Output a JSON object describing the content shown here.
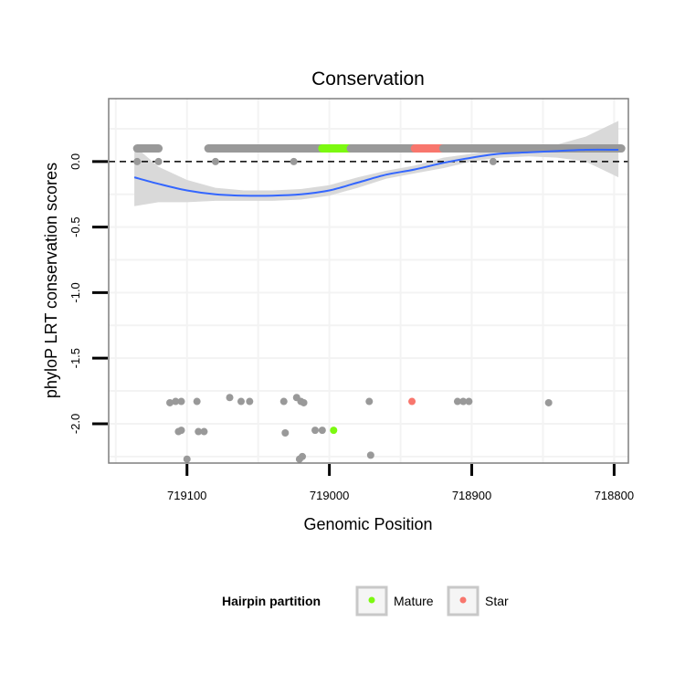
{
  "chart_data": {
    "type": "scatter",
    "title": "Conservation",
    "xlabel": "Genomic Position",
    "ylabel": "phyloP LRT conservation scores",
    "xlim": [
      719155,
      718790
    ],
    "ylim": [
      -2.3,
      0.48
    ],
    "x_reversed": true,
    "grid": true,
    "x_ticks": [
      {
        "value": 719100,
        "label": "719100"
      },
      {
        "value": 719000,
        "label": "719000"
      },
      {
        "value": 718900,
        "label": "718900"
      },
      {
        "value": 718800,
        "label": "718800"
      }
    ],
    "y_ticks": [
      {
        "value": 0.0,
        "label": "0.0"
      },
      {
        "value": -0.5,
        "label": "-0.5"
      },
      {
        "value": -1.0,
        "label": "-1.0"
      },
      {
        "value": -1.5,
        "label": "-1.5"
      },
      {
        "value": -2.0,
        "label": "-2.0"
      }
    ],
    "reference_line": {
      "y": 0,
      "style": "dashed"
    },
    "top_band": {
      "y": 0.1,
      "ranges": [
        {
          "partition": "Other",
          "start": 719135,
          "end": 719120
        },
        {
          "partition": "Other",
          "start": 719085,
          "end": 719005
        },
        {
          "partition": "Mature",
          "start": 719005,
          "end": 718985
        },
        {
          "partition": "Other",
          "start": 718985,
          "end": 718940
        },
        {
          "partition": "Star",
          "start": 718940,
          "end": 718920
        },
        {
          "partition": "Other",
          "start": 718920,
          "end": 718795
        }
      ]
    },
    "points": [
      {
        "x": 719135,
        "y": 0.0,
        "partition": "Other"
      },
      {
        "x": 719120,
        "y": 0.0,
        "partition": "Other"
      },
      {
        "x": 719080,
        "y": 0.0,
        "partition": "Other"
      },
      {
        "x": 719025,
        "y": 0.0,
        "partition": "Other"
      },
      {
        "x": 718885,
        "y": 0.0,
        "partition": "Other"
      },
      {
        "x": 719112,
        "y": -1.84,
        "partition": "Other"
      },
      {
        "x": 719108,
        "y": -1.83,
        "partition": "Other"
      },
      {
        "x": 719104,
        "y": -1.83,
        "partition": "Other"
      },
      {
        "x": 719106,
        "y": -2.06,
        "partition": "Other"
      },
      {
        "x": 719104,
        "y": -2.05,
        "partition": "Other"
      },
      {
        "x": 719100,
        "y": -2.27,
        "partition": "Other"
      },
      {
        "x": 719093,
        "y": -1.83,
        "partition": "Other"
      },
      {
        "x": 719092,
        "y": -2.06,
        "partition": "Other"
      },
      {
        "x": 719088,
        "y": -2.06,
        "partition": "Other"
      },
      {
        "x": 719070,
        "y": -1.8,
        "partition": "Other"
      },
      {
        "x": 719062,
        "y": -1.83,
        "partition": "Other"
      },
      {
        "x": 719056,
        "y": -1.83,
        "partition": "Other"
      },
      {
        "x": 719032,
        "y": -1.83,
        "partition": "Other"
      },
      {
        "x": 719031,
        "y": -2.07,
        "partition": "Other"
      },
      {
        "x": 719023,
        "y": -1.8,
        "partition": "Other"
      },
      {
        "x": 719020,
        "y": -1.83,
        "partition": "Other"
      },
      {
        "x": 719018,
        "y": -1.84,
        "partition": "Other"
      },
      {
        "x": 719021,
        "y": -2.27,
        "partition": "Other"
      },
      {
        "x": 719019,
        "y": -2.25,
        "partition": "Other"
      },
      {
        "x": 719010,
        "y": -2.05,
        "partition": "Other"
      },
      {
        "x": 719005,
        "y": -2.05,
        "partition": "Other"
      },
      {
        "x": 718997,
        "y": -2.05,
        "partition": "Mature"
      },
      {
        "x": 718972,
        "y": -1.83,
        "partition": "Other"
      },
      {
        "x": 718971,
        "y": -2.24,
        "partition": "Other"
      },
      {
        "x": 718942,
        "y": -1.83,
        "partition": "Star"
      },
      {
        "x": 718910,
        "y": -1.83,
        "partition": "Other"
      },
      {
        "x": 718906,
        "y": -1.83,
        "partition": "Other"
      },
      {
        "x": 718902,
        "y": -1.83,
        "partition": "Other"
      },
      {
        "x": 718846,
        "y": -1.84,
        "partition": "Other"
      }
    ],
    "smooth_line": {
      "color": "#3366ff",
      "x": [
        719137,
        719120,
        719100,
        719080,
        719060,
        719040,
        719020,
        719000,
        718980,
        718960,
        718940,
        718920,
        718900,
        718880,
        718860,
        718840,
        718820,
        718797
      ],
      "y": [
        -0.12,
        -0.17,
        -0.22,
        -0.25,
        -0.26,
        -0.26,
        -0.25,
        -0.22,
        -0.16,
        -0.1,
        -0.06,
        -0.01,
        0.03,
        0.06,
        0.07,
        0.08,
        0.09,
        0.09
      ],
      "ci_lower": [
        -0.34,
        -0.31,
        -0.31,
        -0.3,
        -0.3,
        -0.3,
        -0.29,
        -0.26,
        -0.2,
        -0.13,
        -0.09,
        -0.05,
        0.0,
        0.03,
        0.04,
        0.03,
        0.0,
        -0.12
      ],
      "ci_upper": [
        0.12,
        -0.04,
        -0.14,
        -0.2,
        -0.22,
        -0.22,
        -0.21,
        -0.18,
        -0.12,
        -0.07,
        -0.03,
        0.03,
        0.06,
        0.09,
        0.1,
        0.13,
        0.19,
        0.31
      ]
    },
    "legend": {
      "title": "Hairpin partition",
      "position": "bottom",
      "entries": [
        {
          "label": "Mature",
          "color": "#7cf910"
        },
        {
          "label": "Star",
          "color": "#f8766d"
        }
      ]
    },
    "colors": {
      "Other": "#999999",
      "Mature": "#7cf910",
      "Star": "#f8766d",
      "ci_band": "#d9d9d9",
      "grid": "#f3f3f3",
      "panel_border": "#7f7f7f"
    }
  }
}
